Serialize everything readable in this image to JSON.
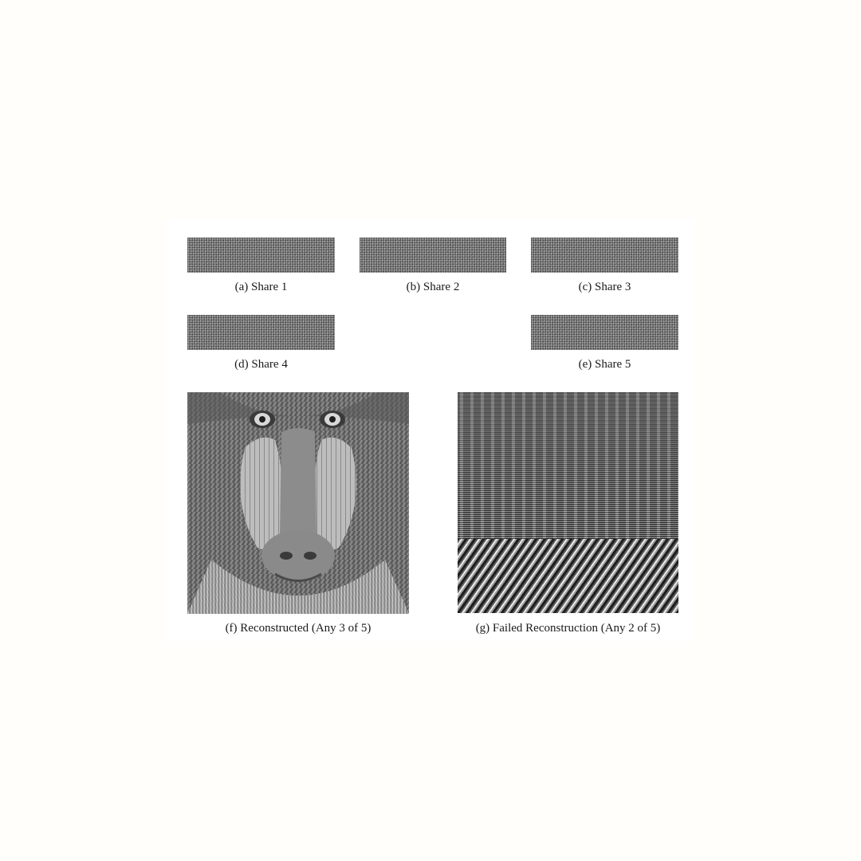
{
  "figure": {
    "panels": [
      {
        "id": "a",
        "caption": "(a) Share 1",
        "content": "noise-share"
      },
      {
        "id": "b",
        "caption": "(b) Share 2",
        "content": "noise-share"
      },
      {
        "id": "c",
        "caption": "(c) Share 3",
        "content": "noise-share"
      },
      {
        "id": "d",
        "caption": "(d) Share 4",
        "content": "noise-share"
      },
      {
        "id": "e",
        "caption": "(e) Share 5",
        "content": "noise-share"
      },
      {
        "id": "f",
        "caption": "(f) Reconstructed (Any 3 of 5)",
        "content": "mandrill-photo"
      },
      {
        "id": "g",
        "caption": "(g) Failed Reconstruction (Any 2 of 5)",
        "content": "noise-and-diagonal-stripes"
      }
    ]
  }
}
